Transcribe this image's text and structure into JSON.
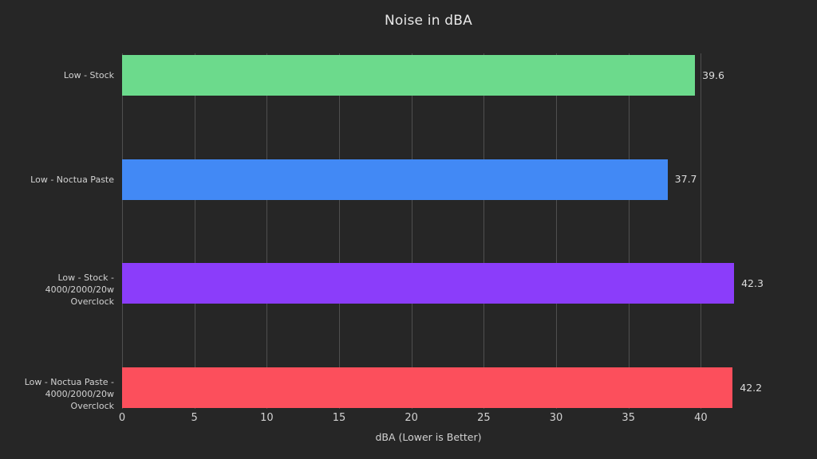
{
  "chart_data": {
    "type": "bar",
    "orientation": "horizontal",
    "title": "Noise in dBA",
    "xlabel": "dBA (Lower is Better)",
    "categories": [
      "Low - Stock",
      "Low - Noctua Paste",
      "Low - Stock - 4000/2000/20w Overclock",
      "Low - Noctua Paste - 4000/2000/20w Overclock"
    ],
    "category_label_lines": [
      [
        "Low - Stock"
      ],
      [
        "Low - Noctua Paste"
      ],
      [
        "Low - Stock -",
        "4000/2000/20w Overclock"
      ],
      [
        "Low - Noctua Paste -",
        "4000/2000/20w Overclock"
      ]
    ],
    "values": [
      39.6,
      37.7,
      42.3,
      42.2
    ],
    "value_labels": [
      "39.6",
      "37.7",
      "42.3",
      "42.2"
    ],
    "bar_colors": [
      "#6cda8c",
      "#4289f5",
      "#8b3dfa",
      "#fc4f5c"
    ],
    "xticks": [
      0,
      5,
      10,
      15,
      20,
      25,
      30,
      35,
      40
    ],
    "xtick_labels": [
      "0",
      "5",
      "10",
      "15",
      "20",
      "25",
      "30",
      "35",
      "40"
    ],
    "xlim": [
      0,
      42.35
    ],
    "grid": true,
    "legend": "none",
    "theme": {
      "background": "#262626",
      "text_color": "#d2d2d2",
      "title_color": "#e8e8e8",
      "grid_color": "#4f4f4f"
    }
  }
}
